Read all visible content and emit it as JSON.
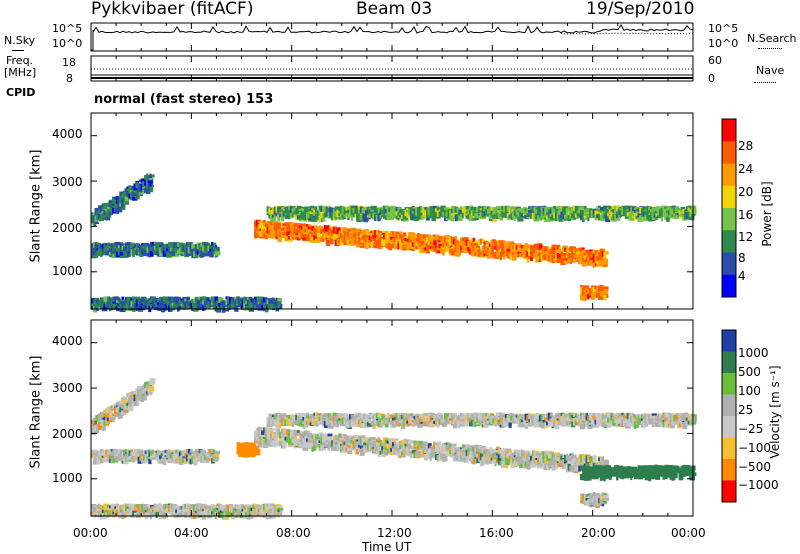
{
  "header": {
    "title": "Pykkvibaer (fitACF)",
    "beam": "Beam 03",
    "date": "19/Sep/2010"
  },
  "noise_panel": {
    "left_label": "N.Sky",
    "left_ticks": [
      "10^5",
      "10^0"
    ],
    "right_ticks": [
      "10^5",
      "10^0"
    ],
    "right_label": "N.Search"
  },
  "freq_panel": {
    "left_label_line1": "Freq.",
    "left_label_line2": "[MHz]",
    "left_ticks": [
      "18",
      "8"
    ],
    "right_ticks": [
      "60",
      "0"
    ],
    "right_label": "Nave"
  },
  "cpid": {
    "label": "CPID",
    "text": "normal (fast stereo) 153"
  },
  "power_panel": {
    "ylabel": "Slant Range [km]",
    "yticks": [
      "4000",
      "3000",
      "2000",
      "1000"
    ],
    "colorbar_label": "Power [dB]",
    "colorbar_ticks": [
      "28",
      "24",
      "20",
      "16",
      "12",
      "8",
      "4"
    ],
    "colors": [
      "#0000ff",
      "#2a4da8",
      "#2d8a4c",
      "#77c24a",
      "#f0d400",
      "#ff9900",
      "#ff5a00",
      "#ff0000"
    ]
  },
  "velocity_panel": {
    "ylabel": "Slant Range [km]",
    "yticks": [
      "4000",
      "3000",
      "2000",
      "1000"
    ],
    "colorbar_label": "Velocity [m s⁻¹]",
    "colorbar_ticks": [
      "1000",
      "500",
      "100",
      "25",
      "−25",
      "−100",
      "−500",
      "−1000"
    ],
    "colors": [
      "#1f3fa8",
      "#2e7d4f",
      "#6abf3a",
      "#b0b0b0",
      "#c8c8c8",
      "#f5c030",
      "#ff8a00",
      "#ff0000"
    ]
  },
  "xaxis": {
    "ticks": [
      "00:00",
      "04:00",
      "08:00",
      "12:00",
      "16:00",
      "20:00",
      "00:00"
    ],
    "label": "Time UT"
  },
  "chart_data": [
    {
      "type": "heatmap",
      "title": "Power",
      "xlabel": "Time UT",
      "ylabel": "Slant Range [km]",
      "x_range_hours": [
        0,
        24
      ],
      "ylim": [
        180,
        4500
      ],
      "colorbar": {
        "label": "Power [dB]",
        "range": [
          0,
          32
        ],
        "ticks": [
          4,
          8,
          12,
          16,
          20,
          24,
          28
        ]
      },
      "features": [
        {
          "desc": "rising band",
          "t_start": 0.0,
          "t_end": 2.4,
          "range_start": 2200,
          "range_end": 3100,
          "power_db": 8
        },
        {
          "desc": "band near 1500 km",
          "t_start": 0.0,
          "t_end": 5.0,
          "range": 1550,
          "power_db": 8
        },
        {
          "desc": "main echo band",
          "t_start": 6.5,
          "t_end": 20.5,
          "range_start": 2000,
          "range_end": 1350,
          "power_db": 24
        },
        {
          "desc": "upper band",
          "t_start": 7.0,
          "t_end": 24.0,
          "range": 2350,
          "power_db": 12
        },
        {
          "desc": "near-range clutter",
          "t_start": 0.0,
          "t_end": 7.5,
          "range": 350,
          "power_db": 8
        },
        {
          "desc": "late echo",
          "t_start": 19.5,
          "t_end": 20.5,
          "range": 600,
          "power_db": 24
        }
      ]
    },
    {
      "type": "heatmap",
      "title": "Velocity",
      "xlabel": "Time UT",
      "ylabel": "Slant Range [km]",
      "x_range_hours": [
        0,
        24
      ],
      "ylim": [
        180,
        4500
      ],
      "colorbar": {
        "label": "Velocity [m s-1]",
        "ticks": [
          1000,
          500,
          100,
          25,
          -25,
          -100,
          -500,
          -1000
        ]
      },
      "features": [
        {
          "desc": "main band mostly ground-scatter",
          "t_start": 6.5,
          "t_end": 20.5,
          "velocity": 0
        },
        {
          "desc": "negative velocity patch",
          "t_start": 5.8,
          "t_end": 6.6,
          "range": 1700,
          "velocity": -500
        },
        {
          "desc": "positive velocity patch",
          "t_start": 19.5,
          "t_end": 24.0,
          "range": 1200,
          "velocity": 500
        }
      ]
    }
  ]
}
